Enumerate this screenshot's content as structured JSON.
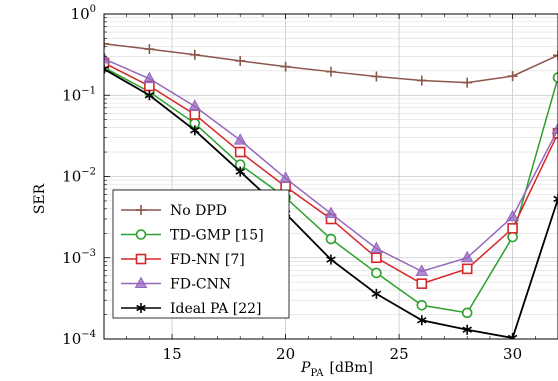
{
  "chart_data": {
    "type": "line",
    "title": "",
    "xlabel_main": "P",
    "xlabel_sub": "PA",
    "xlabel_unit": "[dBm]",
    "ylabel": "SER",
    "xlim": [
      12,
      32
    ],
    "ylim": [
      0.0001,
      1
    ],
    "yscale": "log",
    "grid": true,
    "legend_position": "bottom-left",
    "x_ticks": [
      15,
      20,
      25,
      30
    ],
    "x_tick_labels": [
      "15",
      "20",
      "25",
      "30"
    ],
    "y_ticks": [
      {
        "value": 1,
        "base": "10",
        "exp": "0"
      },
      {
        "value": 0.1,
        "base": "10",
        "exp": "−1"
      },
      {
        "value": 0.01,
        "base": "10",
        "exp": "−2"
      },
      {
        "value": 0.001,
        "base": "10",
        "exp": "−3"
      },
      {
        "value": 0.0001,
        "base": "10",
        "exp": "−4"
      }
    ],
    "series": [
      {
        "name": "No DPD",
        "color": "#8c564b",
        "marker": "plus",
        "x": [
          12,
          14,
          16,
          18,
          20,
          22,
          24,
          26,
          28,
          30,
          32
        ],
        "y": [
          0.43,
          0.37,
          0.315,
          0.265,
          0.225,
          0.195,
          0.17,
          0.152,
          0.143,
          0.172,
          0.31
        ]
      },
      {
        "name": "TD-GMP [15]",
        "color": "#2ca02c",
        "marker": "circle",
        "x": [
          12,
          14,
          16,
          18,
          20,
          22,
          24,
          26,
          28,
          30,
          32
        ],
        "y": [
          0.22,
          0.11,
          0.045,
          0.014,
          0.0055,
          0.0017,
          0.00065,
          0.00026,
          0.00021,
          0.0018,
          0.165
        ]
      },
      {
        "name": "FD-NN [7]",
        "color": "#d62728",
        "marker": "square",
        "x": [
          12,
          14,
          16,
          18,
          20,
          22,
          24,
          26,
          28,
          30,
          32
        ],
        "y": [
          0.25,
          0.13,
          0.058,
          0.02,
          0.0075,
          0.003,
          0.001,
          0.00048,
          0.00073,
          0.0023,
          0.034
        ]
      },
      {
        "name": "FD-CNN",
        "color": "#9467bd",
        "marker": "triangle",
        "x": [
          12,
          14,
          16,
          18,
          20,
          22,
          24,
          26,
          28,
          30,
          32
        ],
        "y": [
          0.28,
          0.16,
          0.073,
          0.028,
          0.0095,
          0.0035,
          0.0013,
          0.00068,
          0.001,
          0.0032,
          0.038
        ]
      },
      {
        "name": "Ideal PA [22]",
        "color": "#000000",
        "marker": "star",
        "x": [
          12,
          14,
          16,
          18,
          20,
          22,
          24,
          26,
          28,
          30,
          32
        ],
        "y": [
          0.21,
          0.1,
          0.037,
          0.0115,
          0.0035,
          0.00095,
          0.00036,
          0.00017,
          0.00013,
          0.000103,
          0.0053
        ]
      }
    ]
  }
}
